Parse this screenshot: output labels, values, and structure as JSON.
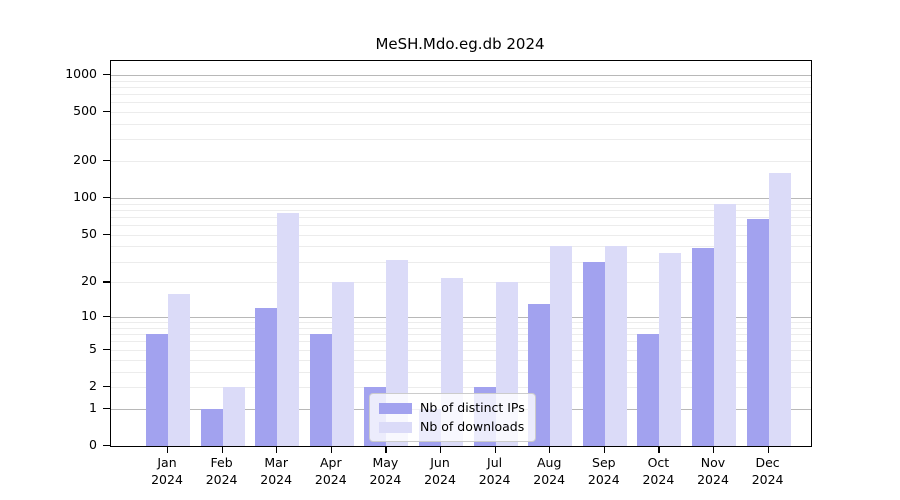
{
  "chart_data": {
    "type": "bar",
    "title": "MeSH.Mdo.eg.db 2024",
    "categories": [
      {
        "month": "Jan",
        "year": "2024"
      },
      {
        "month": "Feb",
        "year": "2024"
      },
      {
        "month": "Mar",
        "year": "2024"
      },
      {
        "month": "Apr",
        "year": "2024"
      },
      {
        "month": "May",
        "year": "2024"
      },
      {
        "month": "Jun",
        "year": "2024"
      },
      {
        "month": "Jul",
        "year": "2024"
      },
      {
        "month": "Aug",
        "year": "2024"
      },
      {
        "month": "Sep",
        "year": "2024"
      },
      {
        "month": "Oct",
        "year": "2024"
      },
      {
        "month": "Nov",
        "year": "2024"
      },
      {
        "month": "Dec",
        "year": "2024"
      }
    ],
    "series": [
      {
        "name": "Nb of distinct IPs",
        "color": "#a2a2ef",
        "values": [
          7,
          1,
          12,
          7,
          2,
          1,
          2,
          13,
          30,
          7,
          39,
          68
        ]
      },
      {
        "name": "Nb of downloads",
        "color": "#dbdbf8",
        "values": [
          16,
          2,
          76,
          20,
          31,
          22,
          20,
          40,
          40,
          35,
          90,
          160
        ]
      }
    ],
    "yscale": "log10(1+x)",
    "yticks": [
      1000,
      500,
      200,
      100,
      50,
      20,
      10,
      5,
      2,
      1,
      0
    ],
    "ylim": [
      0,
      1295
    ],
    "xlabel": "",
    "ylabel": "",
    "grid": "horizontal",
    "legend_position": "lower center inside plot",
    "colors": {
      "major_grid": "#b8b8b8",
      "minor_grid": "#ececec",
      "axis_text": "#000000",
      "plot_border": "#000000",
      "background": "#ffffff"
    }
  }
}
